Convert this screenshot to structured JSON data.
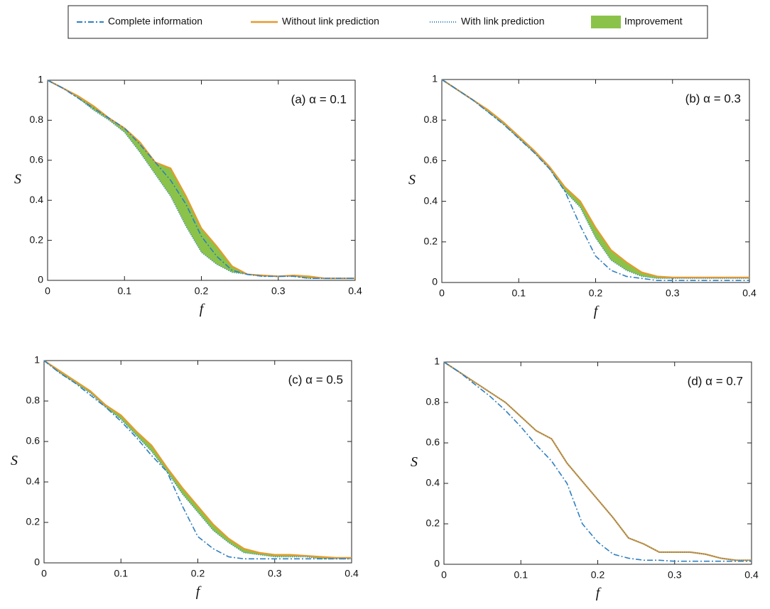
{
  "chart_data": [
    {
      "type": "line",
      "annotation": "(a) α = 0.1",
      "x_label": "f",
      "y_label": "S",
      "x": [
        0,
        0.02,
        0.04,
        0.06,
        0.08,
        0.1,
        0.12,
        0.14,
        0.16,
        0.18,
        0.2,
        0.22,
        0.24,
        0.26,
        0.28,
        0.3,
        0.32,
        0.34,
        0.36,
        0.38,
        0.4
      ],
      "series": [
        {
          "name": "Complete information",
          "color": "#2f7fc1",
          "style": "dashdot",
          "values": [
            1,
            0.96,
            0.91,
            0.86,
            0.81,
            0.76,
            0.68,
            0.59,
            0.5,
            0.38,
            0.22,
            0.12,
            0.05,
            0.03,
            0.02,
            0.02,
            0.02,
            0.01,
            0.01,
            0.01,
            0.01
          ]
        },
        {
          "name": "Without link prediction",
          "color": "#e69a2e",
          "style": "solid",
          "values": [
            1,
            0.96,
            0.92,
            0.87,
            0.81,
            0.76,
            0.69,
            0.59,
            0.56,
            0.42,
            0.26,
            0.17,
            0.07,
            0.03,
            0.025,
            0.02,
            0.025,
            0.02,
            0.01,
            0.01,
            0.01
          ]
        },
        {
          "name": "With link prediction",
          "color": "#2f7fc1",
          "style": "dotted",
          "values": [
            1,
            0.96,
            0.91,
            0.85,
            0.8,
            0.74,
            0.64,
            0.53,
            0.42,
            0.27,
            0.14,
            0.08,
            0.04,
            0.03,
            0.02,
            0.02,
            0.02,
            0.01,
            0.01,
            0.01,
            0.01
          ]
        }
      ],
      "fill": {
        "name": "Improvement",
        "color": "#8bc34a"
      },
      "xlim": [
        0,
        0.4
      ],
      "xticks": [
        0,
        0.1,
        0.2,
        0.3,
        0.4
      ],
      "ylim": [
        0,
        1
      ],
      "yticks": [
        0,
        0.2,
        0.4,
        0.6,
        0.8,
        1
      ]
    },
    {
      "type": "line",
      "annotation": "(b) α = 0.3",
      "x_label": "f",
      "y_label": "S",
      "x": [
        0,
        0.02,
        0.04,
        0.06,
        0.08,
        0.1,
        0.12,
        0.14,
        0.16,
        0.18,
        0.2,
        0.22,
        0.24,
        0.26,
        0.28,
        0.3,
        0.32,
        0.34,
        0.36,
        0.38,
        0.4
      ],
      "series": [
        {
          "color": "#2f7fc1",
          "style": "dashdot",
          "values": [
            1,
            0.95,
            0.9,
            0.84,
            0.78,
            0.71,
            0.64,
            0.56,
            0.45,
            0.28,
            0.13,
            0.06,
            0.03,
            0.02,
            0.01,
            0.01,
            0.01,
            0.01,
            0.01,
            0.01,
            0.01
          ]
        },
        {
          "color": "#e69a2e",
          "style": "solid",
          "values": [
            1,
            0.95,
            0.9,
            0.85,
            0.79,
            0.72,
            0.65,
            0.57,
            0.47,
            0.4,
            0.27,
            0.16,
            0.1,
            0.05,
            0.03,
            0.025,
            0.025,
            0.025,
            0.025,
            0.025,
            0.025
          ]
        },
        {
          "color": "#2f7fc1",
          "style": "dotted",
          "values": [
            1,
            0.95,
            0.9,
            0.84,
            0.78,
            0.71,
            0.64,
            0.56,
            0.45,
            0.37,
            0.22,
            0.11,
            0.06,
            0.03,
            0.02,
            0.02,
            0.02,
            0.02,
            0.02,
            0.02,
            0.02
          ]
        }
      ],
      "fill": {
        "color": "#8bc34a"
      },
      "xlim": [
        0,
        0.4
      ],
      "xticks": [
        0,
        0.1,
        0.2,
        0.3,
        0.4
      ],
      "ylim": [
        0,
        1
      ],
      "yticks": [
        0,
        0.2,
        0.4,
        0.6,
        0.8,
        1
      ]
    },
    {
      "type": "line",
      "annotation": "(c) α = 0.5",
      "x_label": "f",
      "y_label": "S",
      "x": [
        0,
        0.02,
        0.04,
        0.06,
        0.08,
        0.1,
        0.12,
        0.14,
        0.16,
        0.18,
        0.2,
        0.22,
        0.24,
        0.26,
        0.28,
        0.3,
        0.32,
        0.34,
        0.36,
        0.38,
        0.4
      ],
      "series": [
        {
          "color": "#2f7fc1",
          "style": "dashdot",
          "values": [
            1,
            0.94,
            0.89,
            0.83,
            0.77,
            0.7,
            0.62,
            0.53,
            0.45,
            0.28,
            0.13,
            0.07,
            0.03,
            0.02,
            0.02,
            0.02,
            0.02,
            0.02,
            0.02,
            0.02,
            0.02
          ]
        },
        {
          "color": "#e69a2e",
          "style": "solid",
          "values": [
            1,
            0.95,
            0.9,
            0.85,
            0.78,
            0.73,
            0.65,
            0.58,
            0.47,
            0.37,
            0.28,
            0.19,
            0.12,
            0.07,
            0.05,
            0.04,
            0.04,
            0.035,
            0.03,
            0.025,
            0.025
          ]
        },
        {
          "color": "#2f7fc1",
          "style": "dotted",
          "values": [
            1,
            0.94,
            0.89,
            0.84,
            0.77,
            0.71,
            0.63,
            0.55,
            0.45,
            0.34,
            0.25,
            0.16,
            0.1,
            0.05,
            0.04,
            0.03,
            0.03,
            0.03,
            0.02,
            0.02,
            0.02
          ]
        }
      ],
      "fill": {
        "color": "#8bc34a"
      },
      "xlim": [
        0,
        0.4
      ],
      "xticks": [
        0,
        0.1,
        0.2,
        0.3,
        0.4
      ],
      "ylim": [
        0,
        1
      ],
      "yticks": [
        0,
        0.2,
        0.4,
        0.6,
        0.8,
        1
      ]
    },
    {
      "type": "line",
      "annotation": "(d) α = 0.7",
      "x_label": "f",
      "y_label": "S",
      "x": [
        0,
        0.02,
        0.04,
        0.06,
        0.08,
        0.1,
        0.12,
        0.14,
        0.16,
        0.18,
        0.2,
        0.22,
        0.24,
        0.26,
        0.28,
        0.3,
        0.32,
        0.34,
        0.36,
        0.38,
        0.4
      ],
      "series": [
        {
          "color": "#2f7fc1",
          "style": "dashdot",
          "values": [
            1,
            0.95,
            0.89,
            0.83,
            0.76,
            0.68,
            0.59,
            0.51,
            0.4,
            0.2,
            0.11,
            0.05,
            0.03,
            0.02,
            0.02,
            0.015,
            0.015,
            0.015,
            0.015,
            0.015,
            0.015
          ]
        },
        {
          "color": "#e69a2e",
          "style": "solid",
          "values": [
            1,
            0.95,
            0.9,
            0.85,
            0.8,
            0.73,
            0.66,
            0.62,
            0.5,
            0.41,
            0.32,
            0.23,
            0.13,
            0.1,
            0.06,
            0.06,
            0.06,
            0.05,
            0.03,
            0.02,
            0.02
          ]
        },
        {
          "color": "#2f7fc1",
          "style": "dotted",
          "values": [
            1,
            0.95,
            0.9,
            0.85,
            0.8,
            0.73,
            0.66,
            0.62,
            0.5,
            0.41,
            0.32,
            0.23,
            0.13,
            0.1,
            0.06,
            0.06,
            0.06,
            0.05,
            0.03,
            0.02,
            0.02
          ]
        }
      ],
      "fill": {
        "color": "#8bc34a"
      },
      "xlim": [
        0,
        0.4
      ],
      "xticks": [
        0,
        0.1,
        0.2,
        0.3,
        0.4
      ],
      "ylim": [
        0,
        1
      ],
      "yticks": [
        0,
        0.2,
        0.4,
        0.6,
        0.8,
        1
      ]
    }
  ]
}
